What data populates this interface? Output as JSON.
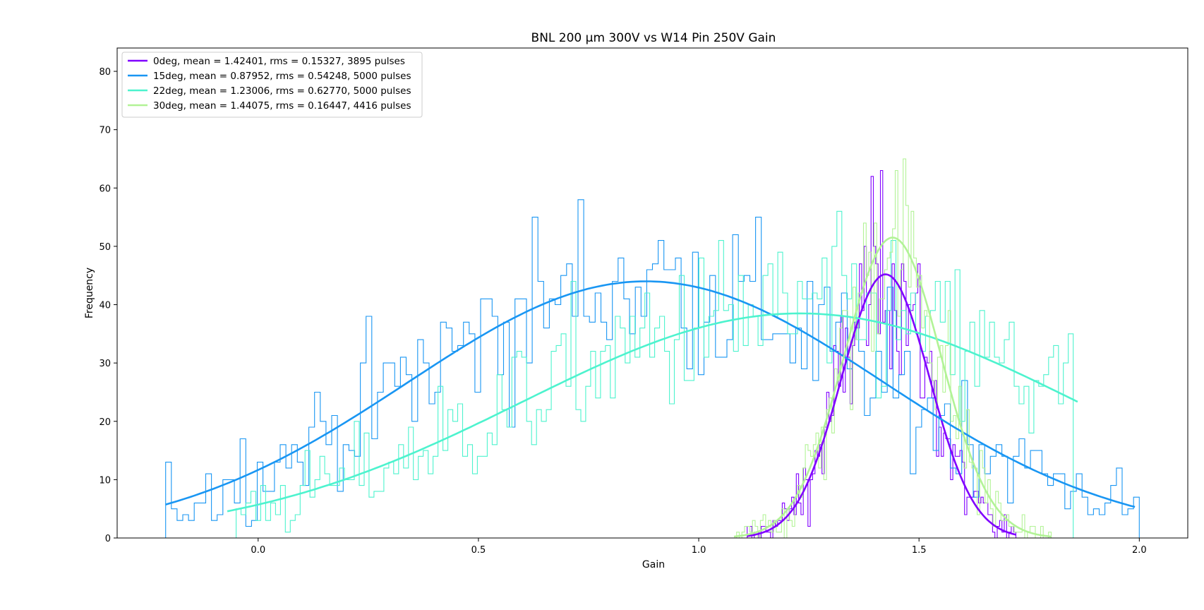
{
  "chart_data": {
    "type": "line",
    "title": "BNL 200 µm 300V vs W14 Pin 250V Gain",
    "xlabel": "Gain",
    "ylabel": "Frequency",
    "xlim": [
      -0.32,
      2.11
    ],
    "ylim": [
      0,
      84
    ],
    "x_ticks": [
      "0.0",
      "0.5",
      "1.0",
      "1.5",
      "2.0"
    ],
    "y_ticks": [
      "0",
      "10",
      "20",
      "30",
      "40",
      "50",
      "60",
      "70",
      "80"
    ],
    "grid": false,
    "legend_position": "top-left",
    "series": [
      {
        "name": "0deg, mean = 1.42401, rms = 0.15327, 3895 pulses",
        "color": "#8000ff",
        "fit": {
          "amplitude": 45.2,
          "mean": 1.424,
          "sigma": 0.1,
          "x_range": [
            1.11,
            1.72
          ]
        },
        "hist_range": [
          1.11,
          1.72
        ],
        "hist_bins": 115
      },
      {
        "name": "15deg, mean = 0.87952, rms = 0.54248, 5000 pulses",
        "color": "#1996f3",
        "fit": {
          "amplitude": 44.0,
          "mean": 0.88,
          "sigma": 0.54,
          "x_range": [
            -0.21,
            1.99
          ]
        },
        "hist_range": [
          -0.21,
          2.0
        ],
        "hist_bins": 170
      },
      {
        "name": "22deg, mean = 1.23006, rms = 0.62770, 5000 pulses",
        "color": "#4df3ce",
        "fit": {
          "amplitude": 38.5,
          "mean": 1.23,
          "sigma": 0.63,
          "x_range": [
            -0.07,
            1.86
          ]
        },
        "hist_range": [
          -0.05,
          1.85
        ],
        "hist_bins": 170
      },
      {
        "name": "30deg, mean = 1.44075, rms = 0.16447, 4416 pulses",
        "color": "#b2f396",
        "fit": {
          "amplitude": 51.5,
          "mean": 1.44,
          "sigma": 0.11,
          "x_range": [
            1.08,
            1.8
          ]
        },
        "hist_range": [
          1.08,
          1.8
        ],
        "hist_bins": 120
      }
    ]
  }
}
